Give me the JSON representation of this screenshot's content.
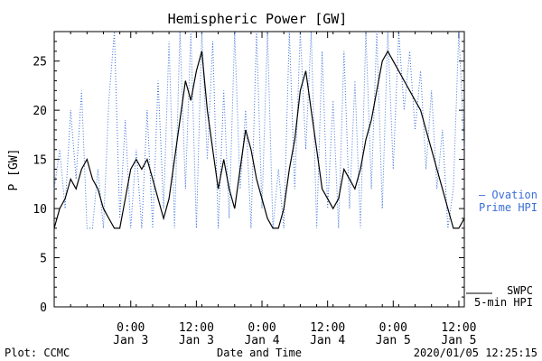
{
  "chart_data": {
    "type": "line",
    "title": "Hemispheric Power [GW]",
    "ylabel": "P [GW]",
    "xlabel": "Date and Time",
    "ylim": [
      0,
      28
    ],
    "xlim": [
      "2020-01-02T10:00",
      "2020-01-05T13:00"
    ],
    "yticks": [
      "0",
      "5",
      "10",
      "15",
      "20",
      "25"
    ],
    "xticks": [
      {
        "t": "2020-01-03T00:00",
        "time": "0:00",
        "date": "Jan 3"
      },
      {
        "t": "2020-01-03T12:00",
        "time": "12:00",
        "date": "Jan 3"
      },
      {
        "t": "2020-01-04T00:00",
        "time": "0:00",
        "date": "Jan 4"
      },
      {
        "t": "2020-01-04T12:00",
        "time": "12:00",
        "date": "Jan 4"
      },
      {
        "t": "2020-01-05T00:00",
        "time": "0:00",
        "date": "Jan 5"
      },
      {
        "t": "2020-01-05T12:00",
        "time": "12:00",
        "date": "Jan 5"
      }
    ],
    "grid": false,
    "series": [
      {
        "name": "SWPC 5-min HPI",
        "style": "solid",
        "color": "#000000",
        "points": [
          [
            "2020-01-02T10:00",
            8
          ],
          [
            "2020-01-02T11:00",
            10
          ],
          [
            "2020-01-02T12:00",
            11
          ],
          [
            "2020-01-02T13:00",
            13
          ],
          [
            "2020-01-02T14:00",
            12
          ],
          [
            "2020-01-02T15:00",
            14
          ],
          [
            "2020-01-02T16:00",
            15
          ],
          [
            "2020-01-02T17:00",
            13
          ],
          [
            "2020-01-02T18:00",
            12
          ],
          [
            "2020-01-02T19:00",
            10
          ],
          [
            "2020-01-02T20:00",
            9
          ],
          [
            "2020-01-02T21:00",
            8
          ],
          [
            "2020-01-02T22:00",
            8
          ],
          [
            "2020-01-02T23:00",
            11
          ],
          [
            "2020-01-03T00:00",
            14
          ],
          [
            "2020-01-03T01:00",
            15
          ],
          [
            "2020-01-03T02:00",
            14
          ],
          [
            "2020-01-03T03:00",
            15
          ],
          [
            "2020-01-03T04:00",
            13
          ],
          [
            "2020-01-03T05:00",
            11
          ],
          [
            "2020-01-03T06:00",
            9
          ],
          [
            "2020-01-03T07:00",
            11
          ],
          [
            "2020-01-03T08:00",
            15
          ],
          [
            "2020-01-03T09:00",
            19
          ],
          [
            "2020-01-03T10:00",
            23
          ],
          [
            "2020-01-03T11:00",
            21
          ],
          [
            "2020-01-03T12:00",
            24
          ],
          [
            "2020-01-03T13:00",
            26
          ],
          [
            "2020-01-03T14:00",
            20
          ],
          [
            "2020-01-03T15:00",
            16
          ],
          [
            "2020-01-03T16:00",
            12
          ],
          [
            "2020-01-03T17:00",
            15
          ],
          [
            "2020-01-03T18:00",
            12
          ],
          [
            "2020-01-03T19:00",
            10
          ],
          [
            "2020-01-03T20:00",
            14
          ],
          [
            "2020-01-03T21:00",
            18
          ],
          [
            "2020-01-03T22:00",
            16
          ],
          [
            "2020-01-03T23:00",
            13
          ],
          [
            "2020-01-04T00:00",
            11
          ],
          [
            "2020-01-04T01:00",
            9
          ],
          [
            "2020-01-04T02:00",
            8
          ],
          [
            "2020-01-04T03:00",
            8
          ],
          [
            "2020-01-04T04:00",
            10
          ],
          [
            "2020-01-04T05:00",
            14
          ],
          [
            "2020-01-04T06:00",
            17
          ],
          [
            "2020-01-04T07:00",
            22
          ],
          [
            "2020-01-04T08:00",
            24
          ],
          [
            "2020-01-04T09:00",
            20
          ],
          [
            "2020-01-04T10:00",
            16
          ],
          [
            "2020-01-04T11:00",
            12
          ],
          [
            "2020-01-04T12:00",
            11
          ],
          [
            "2020-01-04T13:00",
            10
          ],
          [
            "2020-01-04T14:00",
            11
          ],
          [
            "2020-01-04T15:00",
            14
          ],
          [
            "2020-01-04T16:00",
            13
          ],
          [
            "2020-01-04T17:00",
            12
          ],
          [
            "2020-01-04T18:00",
            14
          ],
          [
            "2020-01-04T19:00",
            17
          ],
          [
            "2020-01-04T20:00",
            19
          ],
          [
            "2020-01-04T21:00",
            22
          ],
          [
            "2020-01-04T22:00",
            25
          ],
          [
            "2020-01-04T23:00",
            26
          ],
          [
            "2020-01-05T00:00",
            25
          ],
          [
            "2020-01-05T01:00",
            24
          ],
          [
            "2020-01-05T02:00",
            23
          ],
          [
            "2020-01-05T03:00",
            22
          ],
          [
            "2020-01-05T04:00",
            21
          ],
          [
            "2020-01-05T05:00",
            20
          ],
          [
            "2020-01-05T06:00",
            18
          ],
          [
            "2020-01-05T07:00",
            16
          ],
          [
            "2020-01-05T08:00",
            14
          ],
          [
            "2020-01-05T09:00",
            12
          ],
          [
            "2020-01-05T10:00",
            10
          ],
          [
            "2020-01-05T11:00",
            8
          ],
          [
            "2020-01-05T12:00",
            8
          ],
          [
            "2020-01-05T13:00",
            9
          ]
        ]
      },
      {
        "name": "Ovation Prime HPI",
        "style": "dotted",
        "color": "#3a6fd8",
        "points": [
          [
            "2020-01-02T10:00",
            12
          ],
          [
            "2020-01-02T11:00",
            16
          ],
          [
            "2020-01-02T12:00",
            10
          ],
          [
            "2020-01-02T13:00",
            20
          ],
          [
            "2020-01-02T14:00",
            13
          ],
          [
            "2020-01-02T15:00",
            22
          ],
          [
            "2020-01-02T16:00",
            8
          ],
          [
            "2020-01-02T17:00",
            8
          ],
          [
            "2020-01-02T18:00",
            14
          ],
          [
            "2020-01-02T19:00",
            8
          ],
          [
            "2020-01-02T20:00",
            21
          ],
          [
            "2020-01-02T21:00",
            29
          ],
          [
            "2020-01-02T22:00",
            9
          ],
          [
            "2020-01-02T23:00",
            19
          ],
          [
            "2020-01-03T00:00",
            8
          ],
          [
            "2020-01-03T01:00",
            16
          ],
          [
            "2020-01-03T02:00",
            8
          ],
          [
            "2020-01-03T03:00",
            20
          ],
          [
            "2020-01-03T04:00",
            8
          ],
          [
            "2020-01-03T05:00",
            23
          ],
          [
            "2020-01-03T06:00",
            10
          ],
          [
            "2020-01-03T07:00",
            27
          ],
          [
            "2020-01-03T08:00",
            8
          ],
          [
            "2020-01-03T09:00",
            29
          ],
          [
            "2020-01-03T10:00",
            12
          ],
          [
            "2020-01-03T11:00",
            29
          ],
          [
            "2020-01-03T12:00",
            8
          ],
          [
            "2020-01-03T13:00",
            29
          ],
          [
            "2020-01-03T14:00",
            15
          ],
          [
            "2020-01-03T15:00",
            27
          ],
          [
            "2020-01-03T16:00",
            8
          ],
          [
            "2020-01-03T17:00",
            22
          ],
          [
            "2020-01-03T18:00",
            9
          ],
          [
            "2020-01-03T19:00",
            29
          ],
          [
            "2020-01-03T20:00",
            12
          ],
          [
            "2020-01-03T21:00",
            20
          ],
          [
            "2020-01-03T22:00",
            8
          ],
          [
            "2020-01-03T23:00",
            29
          ],
          [
            "2020-01-04T00:00",
            10
          ],
          [
            "2020-01-04T01:00",
            29
          ],
          [
            "2020-01-04T02:00",
            8
          ],
          [
            "2020-01-04T03:00",
            14
          ],
          [
            "2020-01-04T04:00",
            8
          ],
          [
            "2020-01-04T05:00",
            29
          ],
          [
            "2020-01-04T06:00",
            12
          ],
          [
            "2020-01-04T07:00",
            29
          ],
          [
            "2020-01-04T08:00",
            16
          ],
          [
            "2020-01-04T09:00",
            29
          ],
          [
            "2020-01-04T10:00",
            8
          ],
          [
            "2020-01-04T11:00",
            26
          ],
          [
            "2020-01-04T12:00",
            10
          ],
          [
            "2020-01-04T13:00",
            21
          ],
          [
            "2020-01-04T14:00",
            8
          ],
          [
            "2020-01-04T15:00",
            26
          ],
          [
            "2020-01-04T16:00",
            10
          ],
          [
            "2020-01-04T17:00",
            23
          ],
          [
            "2020-01-04T18:00",
            8
          ],
          [
            "2020-01-04T19:00",
            28
          ],
          [
            "2020-01-04T20:00",
            12
          ],
          [
            "2020-01-04T21:00",
            29
          ],
          [
            "2020-01-04T22:00",
            10
          ],
          [
            "2020-01-04T23:00",
            29
          ],
          [
            "2020-01-05T00:00",
            14
          ],
          [
            "2020-01-05T01:00",
            29
          ],
          [
            "2020-01-05T02:00",
            20
          ],
          [
            "2020-01-05T03:00",
            26
          ],
          [
            "2020-01-05T04:00",
            18
          ],
          [
            "2020-01-05T05:00",
            24
          ],
          [
            "2020-01-05T06:00",
            14
          ],
          [
            "2020-01-05T07:00",
            22
          ],
          [
            "2020-01-05T08:00",
            12
          ],
          [
            "2020-01-05T09:00",
            18
          ],
          [
            "2020-01-05T10:00",
            8
          ],
          [
            "2020-01-05T11:00",
            12
          ],
          [
            "2020-01-05T12:00",
            29
          ],
          [
            "2020-01-05T13:00",
            16
          ]
        ]
      }
    ]
  },
  "legend": {
    "ovation_line1": "— Ovation",
    "ovation_line2": "Prime HPI",
    "swpc_line1": "SWPC",
    "swpc_line2": "5-min HPI"
  },
  "footer": {
    "plot_credit": "Plot: CCMC",
    "timestamp": "2020/01/05 12:25:15"
  },
  "colors": {
    "ovation": "#3a6fd8",
    "swpc": "#000000"
  }
}
